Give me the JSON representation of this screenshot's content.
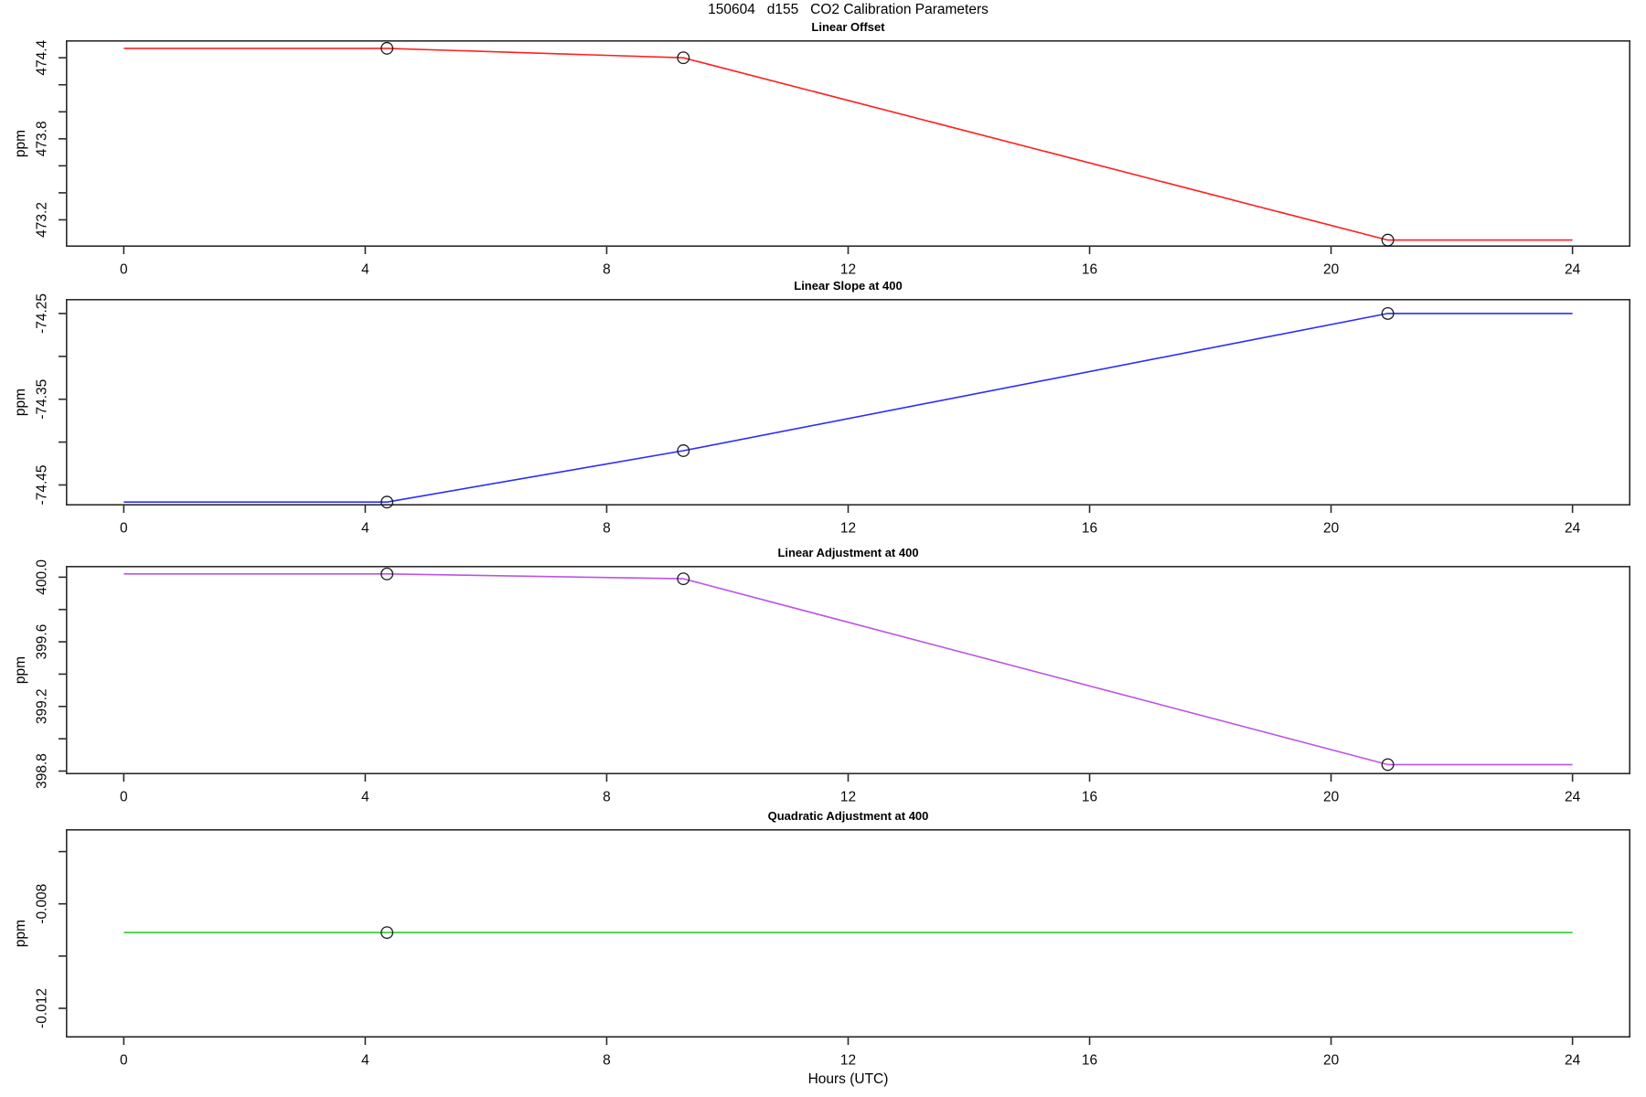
{
  "figure": {
    "title": "150604   d155   CO2 Calibration Parameters",
    "xlabel": "Hours (UTC)"
  },
  "chart_data": [
    {
      "type": "line",
      "title": "Linear Offset",
      "ylabel": "ppm",
      "color": "#ff2020",
      "marker": "open-circle",
      "grid": false,
      "legend": "none",
      "x": [
        0,
        4.36,
        9.27,
        20.94,
        24
      ],
      "y": [
        474.47,
        474.47,
        474.4,
        473.05,
        473.05
      ],
      "markers_x": [
        4.36,
        9.27,
        20.94
      ],
      "markers_y": [
        474.47,
        474.4,
        473.05
      ],
      "xlim": [
        -0.96,
        24.96
      ],
      "ylim": [
        473.0,
        474.53
      ],
      "xticks": [
        0,
        4,
        8,
        12,
        16,
        20,
        24
      ],
      "yticks": [
        [
          474.4,
          "474.4"
        ],
        [
          474.2,
          ""
        ],
        [
          474.0,
          ""
        ],
        [
          473.8,
          "473.8"
        ],
        [
          473.6,
          ""
        ],
        [
          473.4,
          ""
        ],
        [
          473.2,
          "473.2"
        ]
      ]
    },
    {
      "type": "line",
      "title": "Linear Slope at 400",
      "ylabel": "ppm",
      "color": "#2b2bff",
      "marker": "open-circle",
      "grid": false,
      "legend": "none",
      "x": [
        0,
        4.36,
        9.27,
        20.94,
        24
      ],
      "y": [
        -74.47,
        -74.47,
        -74.41,
        -74.25,
        -74.25
      ],
      "markers_x": [
        4.36,
        9.27,
        20.94
      ],
      "markers_y": [
        -74.47,
        -74.41,
        -74.25
      ],
      "xlim": [
        -0.96,
        24.96
      ],
      "ylim": [
        -74.474,
        -74.233
      ],
      "xticks": [
        0,
        4,
        8,
        12,
        16,
        20,
        24
      ],
      "yticks": [
        [
          -74.25,
          "-74.25"
        ],
        [
          -74.3,
          ""
        ],
        [
          -74.35,
          "-74.35"
        ],
        [
          -74.4,
          ""
        ],
        [
          -74.45,
          "-74.45"
        ]
      ]
    },
    {
      "type": "line",
      "title": "Linear Adjustment at 400",
      "ylabel": "ppm",
      "color": "#bc53e6",
      "marker": "open-circle",
      "grid": false,
      "legend": "none",
      "x": [
        0,
        4.36,
        9.27,
        20.94,
        24
      ],
      "y": [
        400.02,
        400.02,
        399.99,
        398.84,
        398.84
      ],
      "markers_x": [
        4.36,
        9.27,
        20.94
      ],
      "markers_y": [
        400.02,
        399.99,
        398.84
      ],
      "xlim": [
        -0.96,
        24.96
      ],
      "ylim": [
        398.78,
        400.07
      ],
      "xticks": [
        0,
        4,
        8,
        12,
        16,
        20,
        24
      ],
      "yticks": [
        [
          400.0,
          "400.0"
        ],
        [
          399.8,
          ""
        ],
        [
          399.6,
          "399.6"
        ],
        [
          399.4,
          ""
        ],
        [
          399.2,
          "399.2"
        ],
        [
          399.0,
          ""
        ],
        [
          398.8,
          "398.8"
        ]
      ]
    },
    {
      "type": "line",
      "title": "Quadratic Adjustment at 400",
      "ylabel": "ppm",
      "color": "#2ecc2e",
      "marker": "open-circle",
      "grid": false,
      "legend": "none",
      "x": [
        0,
        4.36,
        24
      ],
      "y": [
        -0.0091,
        -0.0091,
        -0.0091
      ],
      "markers_x": [
        4.36
      ],
      "markers_y": [
        -0.0091
      ],
      "xlim": [
        -0.96,
        24.96
      ],
      "ylim": [
        -0.01312,
        -0.00514
      ],
      "xticks": [
        0,
        4,
        8,
        12,
        16,
        20,
        24
      ],
      "yticks": [
        [
          -0.006,
          ""
        ],
        [
          -0.008,
          "-0.008"
        ],
        [
          -0.01,
          ""
        ],
        [
          -0.012,
          "-0.012"
        ]
      ]
    }
  ]
}
